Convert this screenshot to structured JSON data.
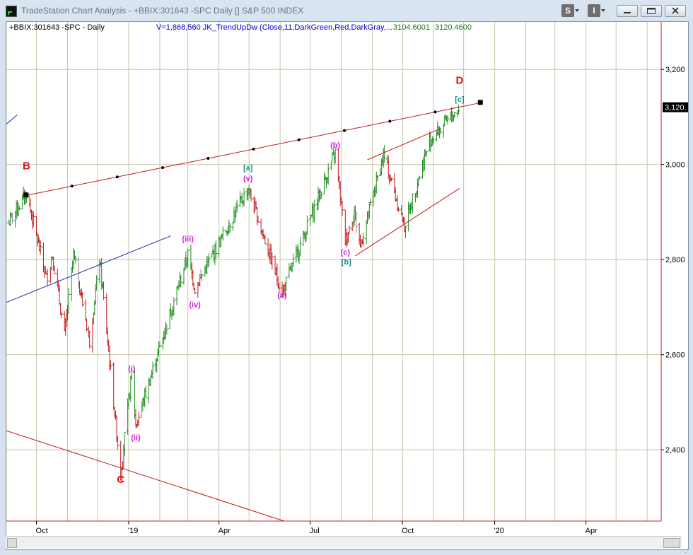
{
  "window": {
    "title": "TradeStation Chart Analysis - +BBIX:301643 -SPC Daily [] S&P 500 INDEX",
    "toolbar_s": "S",
    "toolbar_i": "I"
  },
  "legend": {
    "symbol": "+BBIX:301643 -SPC - Daily",
    "indicator": "V=1,868,560  JK_TrendUpDw (Close,11,DarkGreen,Red,DarkGray,...",
    "value1": "3104.6001",
    "value2": "3120.4600"
  },
  "colors": {
    "up_bar": "#1e8c1e",
    "down_bar": "#c41e1e",
    "neutral_bar": "#8a8a8a",
    "wave_magenta": "#d020d0",
    "wave_teal": "#1a8a8a",
    "wave_red": "#e01010",
    "trend_red": "#c01818",
    "trend_blue": "#1c2fb0",
    "grid": "#c8c4a8"
  },
  "chart_data": {
    "type": "ohlc",
    "price_axis": {
      "min": 2250,
      "max": 3300,
      "ticks": [
        2400,
        2600,
        2800,
        3000,
        3200
      ],
      "tick_labels": [
        "2,400",
        "2,600",
        "2,800",
        "3,000",
        "3,200"
      ]
    },
    "last_price_label": "3,120.",
    "last_price": 3120.46,
    "time_axis": {
      "labels": [
        "Oct",
        "'19",
        "Apr",
        "Jul",
        "Oct",
        "'20",
        "Apr"
      ],
      "range": [
        "2018-09-01",
        "2020-06-15"
      ]
    },
    "grid": true,
    "wave_labels": [
      {
        "text": "B",
        "date": "2018-09-21",
        "price": 2990,
        "style": "red"
      },
      {
        "text": "C",
        "date": "2018-12-24",
        "price": 2330,
        "style": "red"
      },
      {
        "text": "D",
        "date": "2019-11-27",
        "price": 3170,
        "style": "red"
      },
      {
        "text": "(i)",
        "date": "2019-01-04",
        "price": 2565,
        "style": "magenta"
      },
      {
        "text": "(ii)",
        "date": "2019-01-08",
        "price": 2420,
        "style": "magenta"
      },
      {
        "text": "(iii)",
        "date": "2019-03-01",
        "price": 2838,
        "style": "magenta"
      },
      {
        "text": "(iv)",
        "date": "2019-03-08",
        "price": 2700,
        "style": "magenta"
      },
      {
        "text": "(v)",
        "date": "2019-04-30",
        "price": 2965,
        "style": "magenta"
      },
      {
        "text": "[a]",
        "date": "2019-04-30",
        "price": 2988,
        "style": "teal"
      },
      {
        "text": "(a)",
        "date": "2019-06-03",
        "price": 2720,
        "style": "magenta"
      },
      {
        "text": "(b)",
        "date": "2019-07-26",
        "price": 3035,
        "style": "magenta"
      },
      {
        "text": "(c)",
        "date": "2019-08-05",
        "price": 2810,
        "style": "magenta"
      },
      {
        "text": "[b]",
        "date": "2019-08-06",
        "price": 2790,
        "style": "teal"
      },
      {
        "text": "[c]",
        "date": "2019-11-27",
        "price": 3132,
        "style": "teal"
      }
    ],
    "trendlines": [
      {
        "name": "B-D upper channel",
        "color": "red",
        "from": {
          "date": "2018-09-21",
          "price": 2935
        },
        "to": {
          "date": "2019-12-18",
          "price": 3130
        },
        "dotted_markers": true
      },
      {
        "name": "lower red line",
        "color": "red",
        "from": {
          "date": "2018-09-01",
          "price": 2440
        },
        "to": {
          "date": "2019-06-05",
          "price": 2250
        }
      },
      {
        "name": "blue line",
        "color": "blue",
        "from": {
          "date": "2018-09-01",
          "price": 2710
        },
        "to": {
          "date": "2019-02-12",
          "price": 2850
        }
      },
      {
        "name": "blue line top",
        "color": "blue",
        "from": {
          "date": "2018-09-01",
          "price": 3085
        },
        "to": {
          "date": "2018-09-12",
          "price": 3105
        }
      },
      {
        "name": "wedge upper",
        "color": "red",
        "from": {
          "date": "2019-08-27",
          "price": 3010
        },
        "to": {
          "date": "2019-11-07",
          "price": 3075
        }
      },
      {
        "name": "wedge lower",
        "color": "red",
        "from": {
          "date": "2019-08-15",
          "price": 2808
        },
        "to": {
          "date": "2019-11-27",
          "price": 2950
        }
      }
    ],
    "pivots": [
      [
        "2018-09-01",
        2870
      ],
      [
        "2018-09-21",
        2940
      ],
      [
        "2018-10-11",
        2760
      ],
      [
        "2018-10-17",
        2810
      ],
      [
        "2018-10-29",
        2640
      ],
      [
        "2018-11-07",
        2810
      ],
      [
        "2018-11-23",
        2630
      ],
      [
        "2018-12-03",
        2800
      ],
      [
        "2018-12-24",
        2350
      ],
      [
        "2019-01-04",
        2560
      ],
      [
        "2019-01-08",
        2450
      ],
      [
        "2019-03-01",
        2810
      ],
      [
        "2019-03-08",
        2740
      ],
      [
        "2019-04-30",
        2950
      ],
      [
        "2019-06-03",
        2730
      ],
      [
        "2019-07-26",
        3025
      ],
      [
        "2019-08-05",
        2840
      ],
      [
        "2019-08-14",
        2900
      ],
      [
        "2019-08-20",
        2830
      ],
      [
        "2019-09-12",
        3020
      ],
      [
        "2019-10-03",
        2870
      ],
      [
        "2019-10-28",
        3050
      ],
      [
        "2019-11-27",
        3120
      ]
    ]
  }
}
